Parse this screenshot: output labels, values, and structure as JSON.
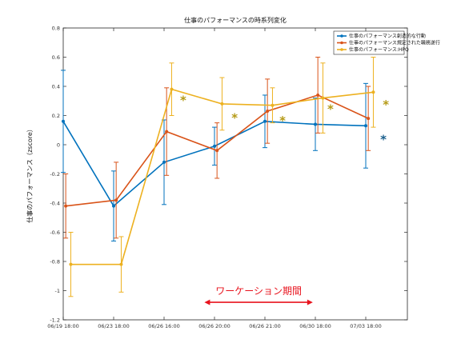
{
  "chart_data": {
    "type": "line",
    "title": "仕事のパフォーマンスの時系列変化",
    "ylabel": "仕事のパフォーマンス（zscore）",
    "xlabel": "",
    "categories": [
      "06/19 18:00",
      "06/23 18:00",
      "06/26 16:00",
      "06/26 20:00",
      "06/26 21:00",
      "06/30 18:00",
      "07/03 18:00"
    ],
    "ylim": [
      -1.2,
      0.8
    ],
    "yticks": [
      "0.8",
      "0.6",
      "0.4",
      "0.2",
      "0",
      "-0.2",
      "-0.4",
      "-0.6",
      "-0.8",
      "-1",
      "-1.2"
    ],
    "grid": false,
    "legend_position": "top-right",
    "series": [
      {
        "name": "仕事のパフォーマンス創造的な行動",
        "color": "#0072BD",
        "x": [
          0,
          1,
          2,
          3,
          4,
          5,
          6
        ],
        "values": [
          0.16,
          -0.42,
          -0.12,
          -0.01,
          0.16,
          0.14,
          0.13
        ],
        "err": [
          0.35,
          0.24,
          0.29,
          0.13,
          0.18,
          0.18,
          0.29
        ]
      },
      {
        "name": "仕事のパフォーマンス規定された職務遂行",
        "color": "#D95319",
        "x": [
          0.05,
          1.05,
          2.05,
          3.05,
          4.05,
          5.05,
          6.05
        ],
        "values": [
          -0.42,
          -0.38,
          0.09,
          -0.04,
          0.23,
          0.34,
          0.18
        ],
        "err": [
          0.22,
          0.26,
          0.3,
          0.19,
          0.22,
          0.26,
          0.22
        ]
      },
      {
        "name": "仕事のパフォーマンス:HPQ",
        "color": "#EDB120",
        "x": [
          0.15,
          1.15,
          2.15,
          3.15,
          4.15,
          5.15,
          6.15
        ],
        "values": [
          -0.82,
          -0.82,
          0.38,
          0.28,
          0.27,
          0.32,
          0.36
        ],
        "err": [
          0.22,
          0.19,
          0.18,
          0.18,
          0.12,
          0.24,
          0.24
        ]
      }
    ],
    "annotations": {
      "period_label": "ワーケーション期間",
      "period_color": "#E8141E",
      "period_from": 2.8,
      "period_to": 4.95,
      "markers": [
        {
          "symbol": "*",
          "x": 2.38,
          "y": 0.31,
          "color": "#B59A16"
        },
        {
          "symbol": "*",
          "x": 3.4,
          "y": 0.19,
          "color": "#B59A16"
        },
        {
          "symbol": "*",
          "x": 4.35,
          "y": 0.17,
          "color": "#B59A16"
        },
        {
          "symbol": "*",
          "x": 5.3,
          "y": 0.25,
          "color": "#B59A16"
        },
        {
          "symbol": "*",
          "x": 6.4,
          "y": 0.28,
          "color": "#B59A16"
        },
        {
          "symbol": "*",
          "x": 6.35,
          "y": 0.04,
          "color": "#1A5E8C"
        }
      ]
    }
  }
}
